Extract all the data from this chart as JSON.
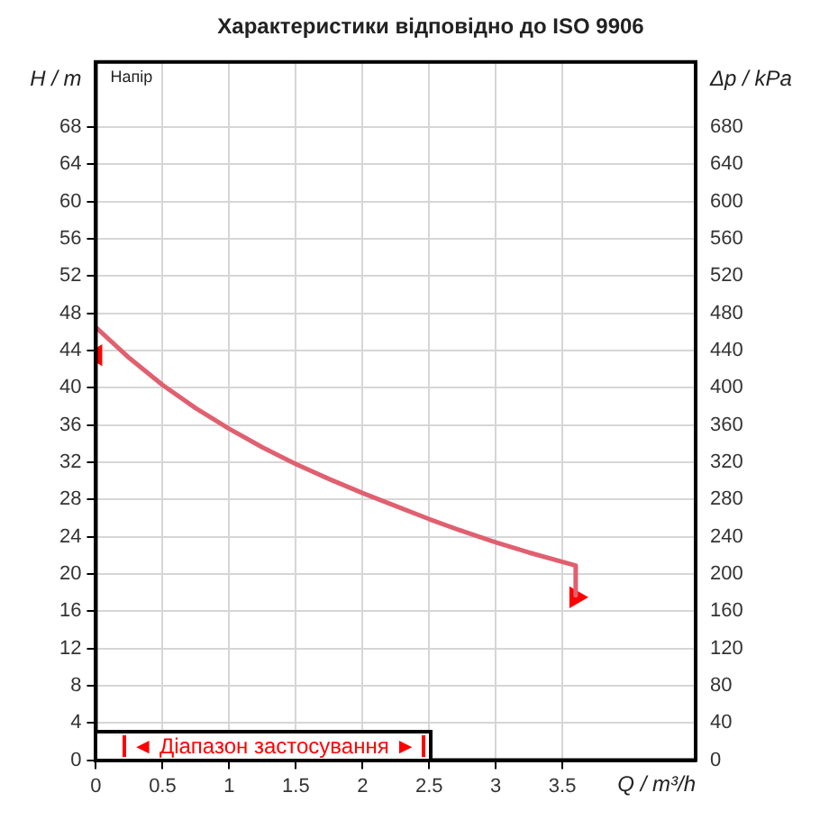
{
  "chart_data": {
    "type": "line",
    "title": "Характеристики відповідно до ISO 9906",
    "xlabel": "Q / m³/h",
    "ylabel": "H / m",
    "y2label": "Δp / kPa",
    "x": [
      0,
      0.25,
      0.5,
      0.75,
      1,
      1.25,
      1.5,
      1.75,
      2,
      2.25,
      2.5,
      2.75,
      3,
      3.25,
      3.6,
      3.6
    ],
    "series": [
      {
        "color": "#e06070",
        "values": [
          46.5,
          43.2,
          40.3,
          37.8,
          35.6,
          33.6,
          31.8,
          30.2,
          28.7,
          27.3,
          25.9,
          24.6,
          23.4,
          22.3,
          20.9,
          17.7
        ]
      },
      {
        "type": "scatter",
        "color": "#ff0000",
        "marker": "triangle",
        "x": [
          0,
          3.6
        ],
        "values": [
          43.5,
          17.5
        ]
      }
    ],
    "xlim": [
      0,
      4.5
    ],
    "xticks": [
      0,
      0.5,
      1,
      1.5,
      2,
      2.5,
      3,
      3.5
    ],
    "ylim": [
      0,
      75
    ],
    "yticks": [
      0,
      4,
      8,
      12,
      16,
      20,
      24,
      28,
      32,
      36,
      40,
      44,
      48,
      52,
      56,
      60,
      64,
      68
    ],
    "y2lim": [
      0,
      750
    ],
    "y2ticks": [
      0,
      40,
      80,
      120,
      160,
      200,
      240,
      280,
      320,
      360,
      400,
      440,
      480,
      520,
      560,
      600,
      640,
      680
    ],
    "annotations": [
      "Напір",
      "◄ Діапазон застосування ►"
    ],
    "grid": true,
    "legend": false,
    "marker": "none",
    "line_style": "solid"
  }
}
